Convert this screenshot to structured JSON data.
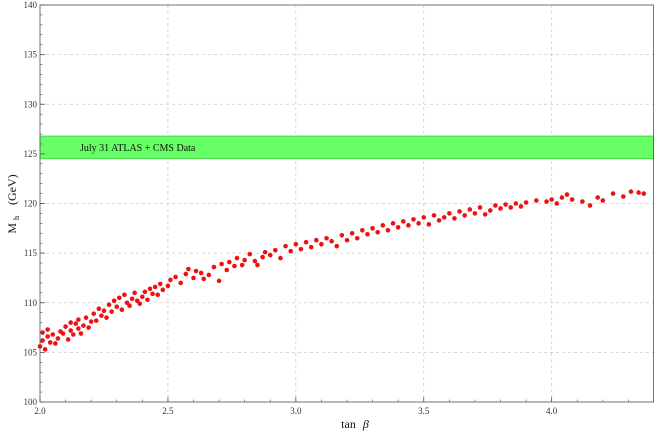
{
  "chart_data": {
    "type": "scatter",
    "title": "",
    "xlabel_text": "tan",
    "xlabel_symbol": "β",
    "ylabel_main": "M",
    "ylabel_sub": "h",
    "ylabel_unit": "(GeV)",
    "xlim": [
      2.0,
      4.4
    ],
    "ylim": [
      100,
      140
    ],
    "x_ticks": [
      2.0,
      2.5,
      3.0,
      3.5,
      4.0
    ],
    "x_tick_labels": [
      "2.0",
      "2.5",
      "3.0",
      "3.5",
      "4.0"
    ],
    "y_ticks": [
      100,
      105,
      110,
      115,
      120,
      125,
      130,
      135,
      140
    ],
    "y_tick_labels": [
      "100",
      "105",
      "110",
      "115",
      "120",
      "125",
      "130",
      "135",
      "140"
    ],
    "grid": true,
    "band": {
      "y_min": 124.5,
      "y_max": 126.8,
      "label": "July 31 ATLAS + CMS Data",
      "color": "#66ff66"
    },
    "point_color": "#ee1111",
    "points": [
      [
        2.0,
        105.6
      ],
      [
        2.01,
        106.2
      ],
      [
        2.01,
        107.0
      ],
      [
        2.02,
        105.3
      ],
      [
        2.03,
        106.6
      ],
      [
        2.03,
        107.3
      ],
      [
        2.04,
        106.0
      ],
      [
        2.05,
        106.8
      ],
      [
        2.06,
        105.9
      ],
      [
        2.07,
        106.4
      ],
      [
        2.08,
        107.1
      ],
      [
        2.09,
        106.9
      ],
      [
        2.1,
        107.6
      ],
      [
        2.11,
        106.3
      ],
      [
        2.12,
        108.0
      ],
      [
        2.12,
        107.2
      ],
      [
        2.13,
        106.8
      ],
      [
        2.14,
        107.9
      ],
      [
        2.15,
        107.4
      ],
      [
        2.15,
        108.3
      ],
      [
        2.16,
        106.9
      ],
      [
        2.17,
        107.7
      ],
      [
        2.18,
        108.5
      ],
      [
        2.19,
        107.5
      ],
      [
        2.2,
        108.1
      ],
      [
        2.21,
        108.9
      ],
      [
        2.22,
        108.2
      ],
      [
        2.23,
        109.4
      ],
      [
        2.24,
        108.7
      ],
      [
        2.25,
        109.2
      ],
      [
        2.26,
        108.5
      ],
      [
        2.27,
        109.8
      ],
      [
        2.28,
        109.1
      ],
      [
        2.29,
        110.2
      ],
      [
        2.3,
        109.6
      ],
      [
        2.31,
        110.5
      ],
      [
        2.32,
        109.3
      ],
      [
        2.33,
        110.8
      ],
      [
        2.34,
        110.0
      ],
      [
        2.35,
        109.7
      ],
      [
        2.36,
        110.4
      ],
      [
        2.37,
        111.0
      ],
      [
        2.38,
        110.2
      ],
      [
        2.39,
        109.9
      ],
      [
        2.4,
        110.6
      ],
      [
        2.41,
        111.1
      ],
      [
        2.42,
        110.3
      ],
      [
        2.43,
        111.4
      ],
      [
        2.44,
        110.9
      ],
      [
        2.45,
        111.6
      ],
      [
        2.46,
        110.8
      ],
      [
        2.47,
        111.9
      ],
      [
        2.48,
        111.3
      ],
      [
        2.5,
        111.7
      ],
      [
        2.51,
        112.3
      ],
      [
        2.53,
        112.6
      ],
      [
        2.55,
        112.0
      ],
      [
        2.57,
        112.9
      ],
      [
        2.58,
        113.4
      ],
      [
        2.6,
        112.5
      ],
      [
        2.61,
        113.2
      ],
      [
        2.63,
        113.0
      ],
      [
        2.64,
        112.4
      ],
      [
        2.66,
        112.8
      ],
      [
        2.68,
        113.6
      ],
      [
        2.7,
        112.2
      ],
      [
        2.71,
        113.9
      ],
      [
        2.73,
        113.3
      ],
      [
        2.74,
        114.1
      ],
      [
        2.76,
        113.7
      ],
      [
        2.77,
        114.5
      ],
      [
        2.79,
        113.8
      ],
      [
        2.8,
        114.3
      ],
      [
        2.82,
        114.9
      ],
      [
        2.84,
        114.2
      ],
      [
        2.85,
        113.8
      ],
      [
        2.87,
        114.6
      ],
      [
        2.88,
        115.1
      ],
      [
        2.9,
        114.8
      ],
      [
        2.92,
        115.3
      ],
      [
        2.94,
        114.5
      ],
      [
        2.96,
        115.7
      ],
      [
        2.98,
        115.2
      ],
      [
        3.0,
        115.9
      ],
      [
        3.02,
        115.4
      ],
      [
        3.04,
        116.1
      ],
      [
        3.06,
        115.6
      ],
      [
        3.08,
        116.3
      ],
      [
        3.1,
        115.9
      ],
      [
        3.12,
        116.5
      ],
      [
        3.14,
        116.2
      ],
      [
        3.16,
        115.7
      ],
      [
        3.18,
        116.8
      ],
      [
        3.2,
        116.3
      ],
      [
        3.22,
        117.0
      ],
      [
        3.24,
        116.5
      ],
      [
        3.26,
        117.3
      ],
      [
        3.28,
        116.9
      ],
      [
        3.3,
        117.5
      ],
      [
        3.32,
        117.1
      ],
      [
        3.34,
        117.8
      ],
      [
        3.36,
        117.3
      ],
      [
        3.38,
        118.0
      ],
      [
        3.4,
        117.6
      ],
      [
        3.42,
        118.2
      ],
      [
        3.44,
        117.8
      ],
      [
        3.46,
        118.4
      ],
      [
        3.48,
        118.0
      ],
      [
        3.5,
        118.6
      ],
      [
        3.52,
        117.9
      ],
      [
        3.54,
        118.8
      ],
      [
        3.56,
        118.3
      ],
      [
        3.58,
        118.6
      ],
      [
        3.6,
        119.0
      ],
      [
        3.62,
        118.5
      ],
      [
        3.64,
        119.2
      ],
      [
        3.66,
        118.8
      ],
      [
        3.68,
        119.4
      ],
      [
        3.7,
        119.0
      ],
      [
        3.72,
        119.6
      ],
      [
        3.74,
        118.9
      ],
      [
        3.76,
        119.3
      ],
      [
        3.78,
        119.8
      ],
      [
        3.8,
        119.5
      ],
      [
        3.82,
        119.9
      ],
      [
        3.84,
        119.6
      ],
      [
        3.86,
        120.0
      ],
      [
        3.88,
        119.7
      ],
      [
        3.9,
        120.1
      ],
      [
        3.94,
        120.3
      ],
      [
        3.98,
        120.2
      ],
      [
        4.0,
        120.4
      ],
      [
        4.02,
        120.0
      ],
      [
        4.04,
        120.6
      ],
      [
        4.06,
        120.9
      ],
      [
        4.08,
        120.4
      ],
      [
        4.12,
        120.2
      ],
      [
        4.15,
        119.8
      ],
      [
        4.18,
        120.6
      ],
      [
        4.2,
        120.3
      ],
      [
        4.24,
        121.0
      ],
      [
        4.28,
        120.7
      ],
      [
        4.31,
        121.2
      ],
      [
        4.34,
        121.1
      ],
      [
        4.36,
        121.0
      ]
    ]
  }
}
